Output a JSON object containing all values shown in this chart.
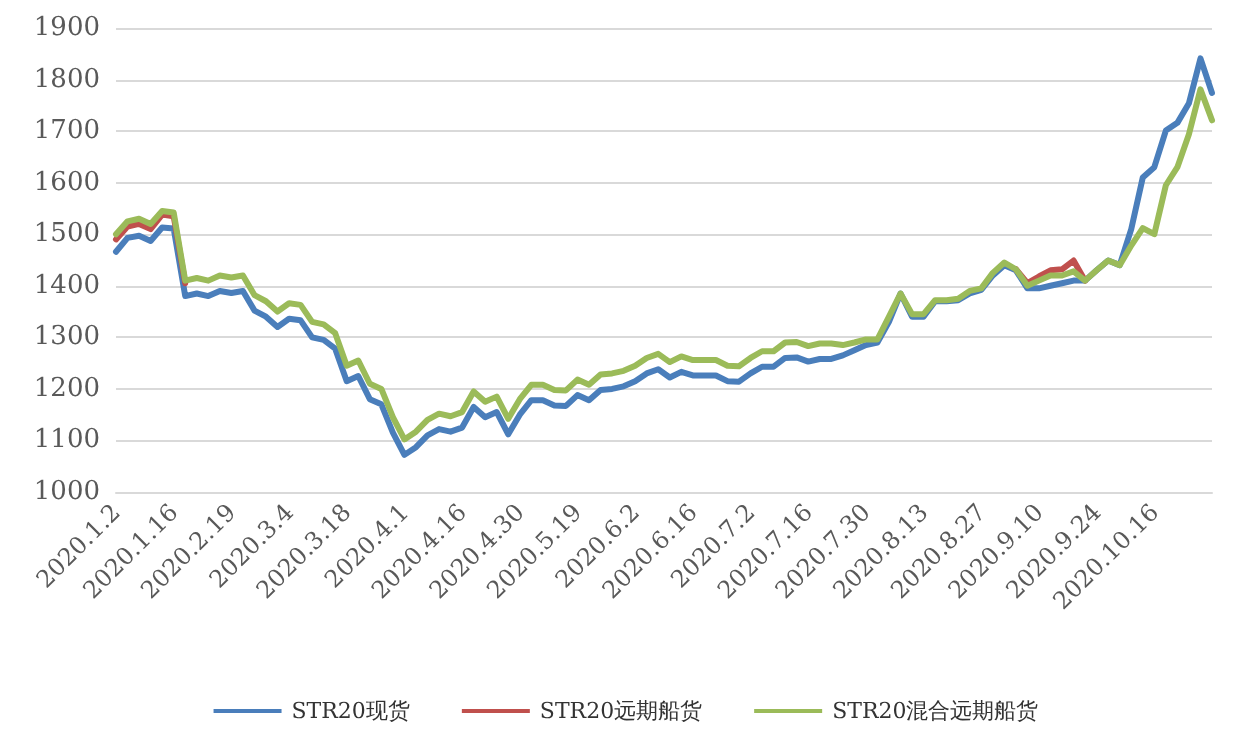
{
  "chart_data": {
    "type": "line",
    "categories": [
      "2020.1.2",
      null,
      null,
      null,
      null,
      "2020.1.16",
      null,
      null,
      null,
      null,
      "2020.2.19",
      null,
      null,
      null,
      null,
      "2020.3.4",
      null,
      null,
      null,
      null,
      "2020.3.18",
      null,
      null,
      null,
      null,
      "2020.4.1",
      null,
      null,
      null,
      null,
      "2020.4.16",
      null,
      null,
      null,
      null,
      "2020.4.30",
      null,
      null,
      null,
      null,
      "2020.5.19",
      null,
      null,
      null,
      null,
      "2020.6.2",
      null,
      null,
      null,
      null,
      "2020.6.16",
      null,
      null,
      null,
      null,
      "2020.7.2",
      null,
      null,
      null,
      null,
      "2020.7.16",
      null,
      null,
      null,
      null,
      "2020.7.30",
      null,
      null,
      null,
      null,
      "2020.8.13",
      null,
      null,
      null,
      null,
      "2020.8.27",
      null,
      null,
      null,
      null,
      "2020.9.10",
      null,
      null,
      null,
      null,
      "2020.9.24",
      null,
      null,
      null,
      null,
      "2020.10.16",
      null,
      null,
      null,
      null,
      null
    ],
    "series": [
      {
        "name": "STR20现货",
        "color": "#4a7ebb",
        "values": [
          1466,
          1493,
          1497,
          1487,
          1513,
          1511,
          1380,
          1385,
          1380,
          1390,
          1386,
          1390,
          1352,
          1340,
          1320,
          1336,
          1333,
          1300,
          1295,
          1278,
          1215,
          1225,
          1180,
          1170,
          1115,
          1072,
          1087,
          1110,
          1122,
          1117,
          1125,
          1165,
          1145,
          1155,
          1112,
          1150,
          1178,
          1178,
          1168,
          1167,
          1188,
          1178,
          1198,
          1200,
          1205,
          1215,
          1230,
          1238,
          1222,
          1233,
          1226,
          1226,
          1226,
          1215,
          1214,
          1230,
          1243,
          1243,
          1260,
          1261,
          1253,
          1258,
          1258,
          1265,
          1275,
          1285,
          1290,
          1330,
          1385,
          1340,
          1340,
          1370,
          1370,
          1372,
          1385,
          1392,
          1420,
          1440,
          1430,
          1395,
          1395,
          1400,
          1405,
          1410,
          1410,
          1430,
          1449,
          1440,
          1510,
          1610,
          1630,
          1701,
          1716,
          1754,
          1841,
          1774
        ]
      },
      {
        "name": "STR20远期船货",
        "color": "#c0504d",
        "values": [
          1490,
          1515,
          1520,
          1510,
          1538,
          1535,
          1405,
          null,
          null,
          null,
          null,
          null,
          null,
          null,
          null,
          null,
          null,
          null,
          null,
          null,
          null,
          null,
          null,
          null,
          null,
          null,
          null,
          null,
          null,
          null,
          null,
          null,
          null,
          null,
          null,
          null,
          null,
          null,
          null,
          null,
          null,
          null,
          null,
          null,
          null,
          null,
          null,
          null,
          null,
          null,
          null,
          null,
          null,
          null,
          null,
          null,
          null,
          null,
          null,
          null,
          null,
          null,
          null,
          null,
          null,
          null,
          null,
          null,
          null,
          null,
          null,
          null,
          null,
          null,
          null,
          null,
          null,
          null,
          1432,
          1405,
          1418,
          1430,
          1432,
          1449,
          1410,
          null,
          null,
          null,
          null,
          null,
          null,
          null,
          null,
          null,
          null,
          null
        ]
      },
      {
        "name": "STR20混合远期船货",
        "color": "#9bbb59",
        "values": [
          1500,
          1525,
          1530,
          1520,
          1545,
          1542,
          1410,
          1415,
          1410,
          1420,
          1416,
          1420,
          1382,
          1370,
          1350,
          1366,
          1363,
          1330,
          1325,
          1308,
          1245,
          1255,
          1210,
          1200,
          1145,
          1102,
          1117,
          1140,
          1152,
          1147,
          1155,
          1195,
          1175,
          1185,
          1142,
          1180,
          1208,
          1208,
          1198,
          1197,
          1218,
          1208,
          1228,
          1230,
          1235,
          1245,
          1260,
          1268,
          1252,
          1263,
          1256,
          1256,
          1256,
          1245,
          1244,
          1260,
          1273,
          1273,
          1290,
          1291,
          1283,
          1288,
          1288,
          1285,
          1290,
          1296,
          1296,
          1340,
          1385,
          1345,
          1345,
          1372,
          1372,
          1375,
          1390,
          1395,
          1425,
          1445,
          1432,
          1400,
          1410,
          1420,
          1420,
          1428,
          1410,
          1430,
          1449,
          1440,
          1478,
          1512,
          1500,
          1595,
          1630,
          1694,
          1781,
          1721
        ]
      }
    ],
    "ylim": [
      1000,
      1900
    ],
    "yticks": [
      1000,
      1100,
      1200,
      1300,
      1400,
      1500,
      1600,
      1700,
      1800,
      1900
    ],
    "grid": "y",
    "legend": "bottom",
    "marker": "none",
    "line_style": "solid"
  }
}
